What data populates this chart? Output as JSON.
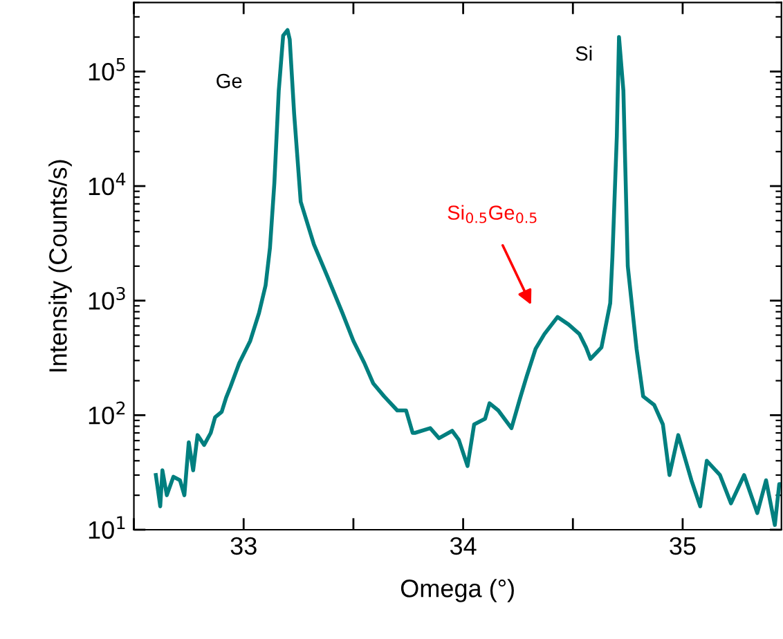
{
  "chart_data": {
    "type": "line",
    "xlabel": "Omega (°)",
    "ylabel": "Intensity (Counts/s)",
    "log": "y",
    "grid": false,
    "legend": false,
    "marker": "none",
    "line_style": "solid",
    "xlim": [
      32.5,
      35.45
    ],
    "ylim": [
      10,
      400000
    ],
    "xticks": [
      {
        "value": 32.5,
        "label": null
      },
      33,
      {
        "value": 33.5,
        "label": null
      },
      34,
      {
        "value": 34.5,
        "label": null
      },
      35
    ],
    "yticks": [
      {
        "value": 10,
        "label": "10$^{1}$"
      },
      {
        "value": 100,
        "label": "10$^{2}$"
      },
      {
        "value": 1000,
        "label": "10$^{3}$"
      },
      {
        "value": 10000,
        "label": "10$^{4}$"
      },
      {
        "value": 100000,
        "label": "10$^{5}$"
      }
    ],
    "annotations": [
      "Ge",
      "Si",
      "Si$_{0.5}$Ge$_{0.5}$"
    ],
    "series": [
      {
        "color": "#007f7f",
        "x": [
          32.6,
          32.62,
          32.63,
          32.65,
          32.68,
          32.71,
          32.73,
          32.75,
          32.77,
          32.79,
          32.82,
          32.85,
          32.87,
          32.9,
          32.92,
          32.94,
          32.98,
          33.03,
          33.07,
          33.1,
          33.12,
          33.14,
          33.16,
          33.18,
          33.2,
          33.21,
          33.23,
          33.26,
          33.32,
          33.38,
          33.45,
          33.5,
          33.55,
          33.59,
          33.64,
          33.7,
          33.74,
          33.77,
          33.78,
          33.85,
          33.89,
          33.95,
          33.98,
          34.02,
          34.05,
          34.1,
          34.12,
          34.16,
          34.22,
          34.26,
          34.29,
          34.33,
          34.37,
          34.43,
          34.48,
          34.53,
          34.56,
          34.58,
          34.63,
          34.67,
          34.68,
          34.7,
          34.71,
          34.73,
          34.75,
          34.79,
          34.82,
          34.87,
          34.91,
          34.94,
          34.98,
          35.04,
          35.08,
          35.11,
          35.17,
          35.22,
          35.28,
          35.34,
          35.38,
          35.42,
          35.44,
          35.45
        ],
        "values": [
          30,
          16,
          33,
          20,
          29,
          27,
          20,
          58,
          33,
          67,
          55,
          70,
          96,
          107,
          142,
          177,
          285,
          445,
          780,
          1360,
          2900,
          10700,
          68000,
          206000,
          230000,
          190000,
          43000,
          7300,
          3100,
          1650,
          780,
          445,
          285,
          190,
          146,
          110,
          110,
          70,
          70,
          77,
          63,
          73,
          61,
          36,
          83,
          93,
          127,
          110,
          77,
          142,
          220,
          380,
          510,
          720,
          620,
          510,
          390,
          310,
          390,
          950,
          2400,
          27000,
          200000,
          68000,
          2000,
          380,
          146,
          123,
          83,
          30,
          67,
          27,
          16,
          40,
          30,
          17,
          30,
          14,
          27,
          11,
          25,
          25
        ]
      }
    ]
  }
}
